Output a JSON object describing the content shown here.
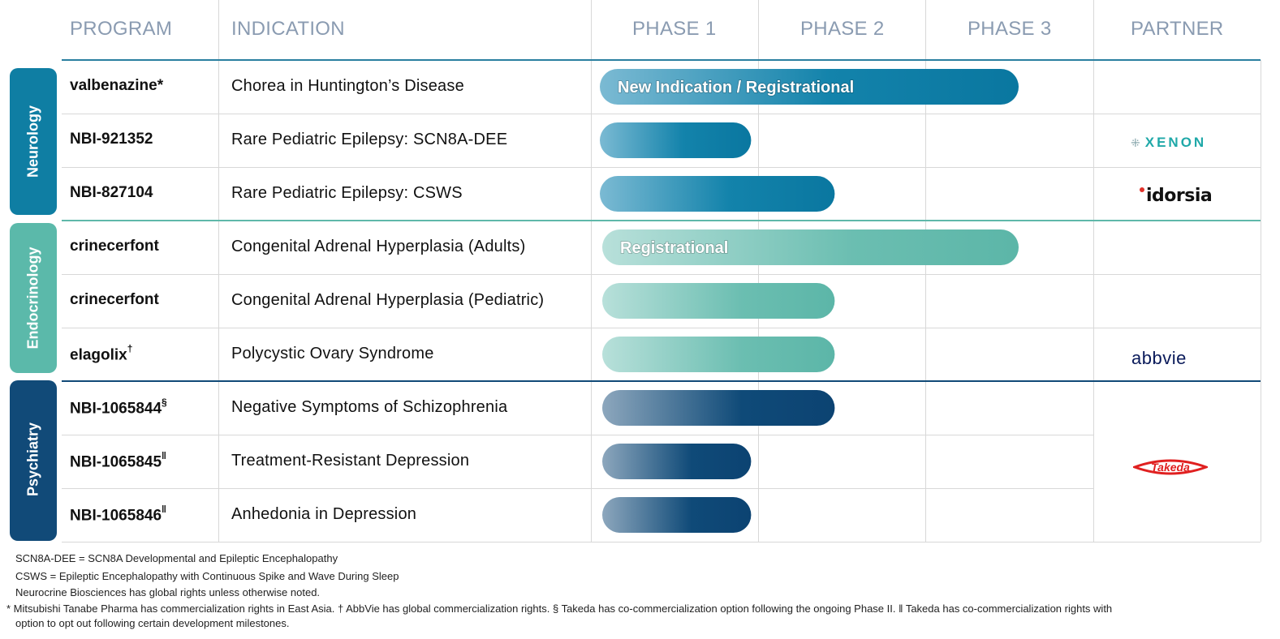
{
  "headers": {
    "program": "PROGRAM",
    "indication": "INDICATION",
    "phase1": "PHASE 1",
    "phase2": "PHASE 2",
    "phase3": "PHASE 3",
    "partner": "PARTNER"
  },
  "categories": [
    {
      "label": "Neurology",
      "color": "#0f7ea3"
    },
    {
      "label": "Endocrinology",
      "color": "#5bb9aa"
    },
    {
      "label": "Psychiatry",
      "color": "#114a78"
    }
  ],
  "rows": [
    {
      "program": "valbenazine*",
      "sup": "",
      "indication": "Chorea in Huntington’s Disease"
    },
    {
      "program": "NBI-921352",
      "sup": "",
      "indication": "Rare Pediatric Epilepsy: SCN8A-DEE"
    },
    {
      "program": "NBI-827104",
      "sup": "",
      "indication": "Rare Pediatric Epilepsy: CSWS"
    },
    {
      "program": "crinecerfont",
      "sup": "",
      "indication": "Congenital Adrenal Hyperplasia (Adults)"
    },
    {
      "program": "crinecerfont",
      "sup": "",
      "indication": "Congenital Adrenal Hyperplasia (Pediatric)"
    },
    {
      "program": "elagolix",
      "sup": "†",
      "indication": "Polycystic Ovary Syndrome"
    },
    {
      "program": "NBI-1065844",
      "sup": "§",
      "indication": "Negative Symptoms of Schizophrenia"
    },
    {
      "program": "NBI-1065845",
      "sup": "ǁ",
      "indication": "Treatment-Resistant Depression"
    },
    {
      "program": "NBI-1065846",
      "sup": "ǁ",
      "indication": "Anhedonia in Depression"
    }
  ],
  "partners": {
    "xenon": "XENON",
    "idorsia": "idorsia",
    "abbvie": "abbvie",
    "takeda": "Takeda"
  },
  "chart_data": {
    "type": "bar",
    "orientation": "horizontal",
    "x_scale": "development phase (1–3)",
    "categories": [
      "valbenazine* — Chorea in Huntington’s Disease",
      "NBI-921352 — Rare Pediatric Epilepsy: SCN8A-DEE",
      "NBI-827104 — Rare Pediatric Epilepsy: CSWS",
      "crinecerfont — Congenital Adrenal Hyperplasia (Adults)",
      "crinecerfont — Congenital Adrenal Hyperplasia (Pediatric)",
      "elagolix — Polycystic Ovary Syndrome",
      "NBI-1065844 — Negative Symptoms of Schizophrenia",
      "NBI-1065845 — Treatment-Resistant Depression",
      "NBI-1065846 — Anhedonia in Depression"
    ],
    "values": [
      2.5,
      0.9,
      1.4,
      2.5,
      1.4,
      1.4,
      1.4,
      0.9,
      0.9
    ],
    "bar_labels": [
      "New Indication  / Registrational",
      "",
      "",
      "Registrational",
      "",
      "",
      "",
      "",
      ""
    ],
    "groups": [
      "Neurology",
      "Neurology",
      "Neurology",
      "Endocrinology",
      "Endocrinology",
      "Endocrinology",
      "Psychiatry",
      "Psychiatry",
      "Psychiatry"
    ],
    "group_colors": {
      "Neurology": "#0a7aa3",
      "Endocrinology": "#5fb8aa",
      "Psychiatry": "#0f4775"
    }
  },
  "footnotes": [
    "SCN8A-DEE = SCN8A Developmental and Epileptic Encephalopathy",
    "CSWS = Epileptic Encephalopathy with Continuous Spike and Wave During Sleep",
    "Neurocrine Biosciences has global rights unless otherwise noted.",
    "* Mitsubishi Tanabe Pharma has commercialization rights in East Asia.  † AbbVie  has global commercialization rights.  § Takeda has co-commercialization option following the ongoing Phase II.   ǁ Takeda has co-commercialization rights with",
    "option to opt out following certain development milestones."
  ]
}
